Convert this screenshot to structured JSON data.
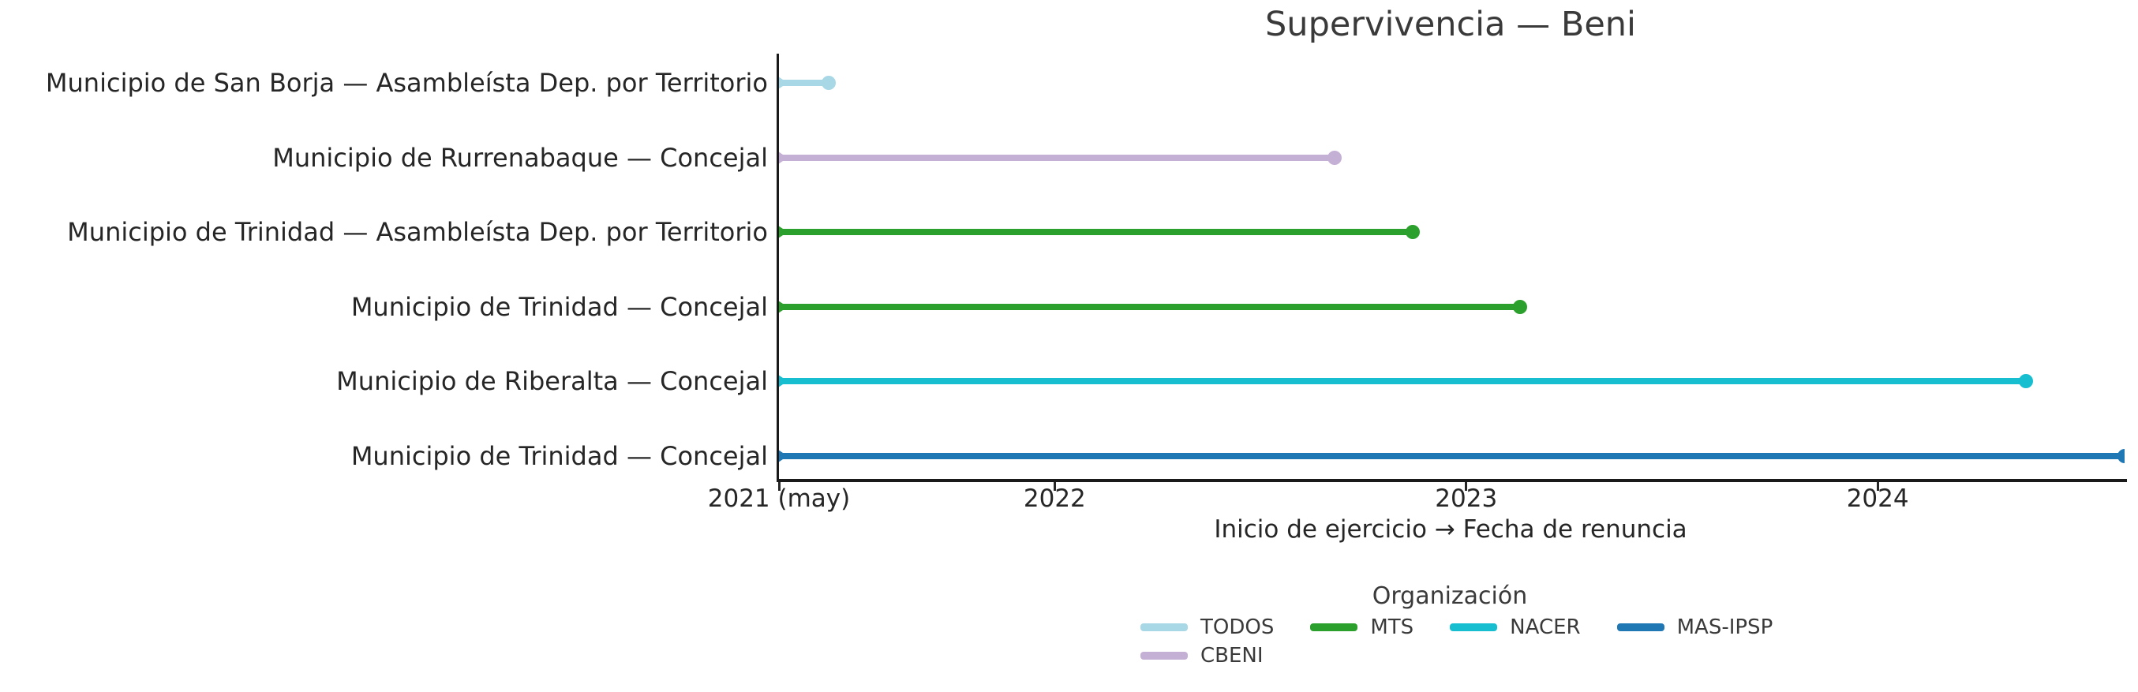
{
  "title": "Supervivencia — Beni",
  "chart_data": {
    "type": "line",
    "subtype": "lollipop-timeline",
    "title": "Supervivencia — Beni",
    "xlabel": "Inicio de ejercicio → Fecha de renuncia",
    "legend_title": "Organización",
    "grid": false,
    "legend_position": "bottom-center",
    "x_domain": [
      2021.33,
      2024.6
    ],
    "x_ticks": [
      {
        "label": "2021 (may)",
        "value": 2021.33
      },
      {
        "label": "2022",
        "value": 2022
      },
      {
        "label": "2023",
        "value": 2023
      },
      {
        "label": "2024",
        "value": 2024
      }
    ],
    "rows": [
      {
        "label": "Municipio de San Borja — Asambleísta Dep. por Territorio",
        "org": "TODOS",
        "start": 2021.33,
        "end": 2021.45
      },
      {
        "label": "Municipio de Rurrenabaque — Concejal",
        "org": "CBENI",
        "start": 2021.33,
        "end": 2022.68
      },
      {
        "label": "Municipio de Trinidad — Asambleísta Dep. por Territorio",
        "org": "MTS",
        "start": 2021.33,
        "end": 2022.87
      },
      {
        "label": "Municipio de Trinidad — Concejal",
        "org": "MTS",
        "start": 2021.33,
        "end": 2023.13
      },
      {
        "label": "Municipio de Riberalta — Concejal",
        "org": "NACER",
        "start": 2021.33,
        "end": 2024.36
      },
      {
        "label": "Municipio de Trinidad — Concejal",
        "org": "MAS-IPSP",
        "start": 2021.33,
        "end": 2024.6
      }
    ],
    "colors": {
      "TODOS": "#a8d8e6",
      "MTS": "#2ca02c",
      "NACER": "#17becf",
      "MAS-IPSP": "#1f77b4",
      "CBENI": "#c5b0d5"
    },
    "legend_rows": [
      [
        "TODOS",
        "MTS",
        "NACER",
        "MAS-IPSP"
      ],
      [
        "CBENI"
      ]
    ]
  }
}
